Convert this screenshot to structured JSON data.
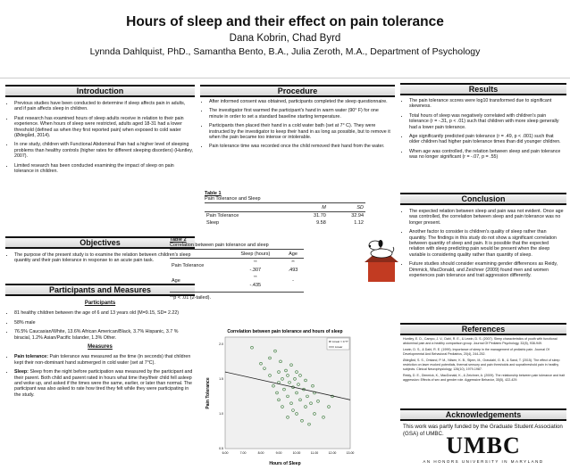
{
  "header": {
    "title": "Hours of sleep and their effect on pain tolerance",
    "authors": "Dana Kobrin, Chad Byrd",
    "affiliation": "Lynnda Dahlquist, PhD., Samantha Bento, B.A., Julia Zeroth, M.A., Department of Psychology"
  },
  "introduction": {
    "heading": "Introduction",
    "bullets": [
      "Previous studies have been conducted to determine if sleep affects pain in adults, and if pain affects sleep in children.",
      "Past research has examined hours of sleep adults receive in relation to their pain experience. When hours of sleep were restricted, adults aged 18-31 had a lower threshold (defined as when they first reported pain) when exposed to cold water (Ødegård, 2014).",
      "In one study, children with Functional Abdominal Pain had a higher level of sleeping problems than healthy controls (higher rates for different sleeping disorders) (Huntley, 2007).",
      "Limited research has been conducted examining the impact of sleep on pain tolerance in children."
    ]
  },
  "objectives": {
    "heading": "Objectives",
    "bullets": [
      "The purpose of the present study is to examine the relation between children's sleep quantity and their pain tolerance in response to an acute pain task."
    ]
  },
  "participants": {
    "heading": "Participants and Measures",
    "participants_sub": "Participants",
    "bullets": [
      "81 healthy children between the age of 6 and 13 years old (M=9.15, SD= 2.22)",
      "58% male",
      "76.5% Caucasian/White, 13.6% African American/Black, 3.7% Hispanic, 3.7 % biracial, 1.2% Asian/Pacific Islander, 1.3% Other."
    ],
    "measures_sub": "Measures",
    "measures": [
      {
        "label": "Pain tolerance:",
        "text": " Pain tolerance was measured as the time (in seconds) that children kept their non-dominant hand submerged in cold water (set at 7°C)."
      },
      {
        "label": "Sleep:",
        "text": " Sleep from the night before participation was measured by the participant and their parent. Both child and parent rated in hours what time they/their child fell asleep and woke up, and asked if the times were the same, earlier, or later than normal. The participant was also asked to rate how tired they felt while they were participating in the study."
      }
    ]
  },
  "procedure": {
    "heading": "Procedure",
    "bullets": [
      "After informed consent was obtained, participants completed the sleep questionnaire.",
      "The investigator first warmed the participant's hand in warm water (90° F) for one minute in order to set a standard baseline starting temperature.",
      "Participants then placed their hand in a cold water bath (set at 7° C). They were instructed by the investigator to keep their hand in as long as possible, but to remove it when the pain became too intense or intolerable.",
      "Pain tolerance time was recorded once the child removed their hand from the water."
    ]
  },
  "table1": {
    "caption": "Table 1",
    "subtitle": "Pain Tolerance and Sleep",
    "col_m": "M",
    "col_sd": "SD",
    "rows": [
      {
        "label": "Pain Tolerance",
        "m": "31.70",
        "sd": "32.94"
      },
      {
        "label": "Sleep",
        "m": "9.58",
        "sd": "1.12"
      }
    ]
  },
  "table2": {
    "caption": "Table 2",
    "subtitle": "Correlation between pain tolerance and sleep",
    "col1": "Sleep (hours)",
    "col2": "Age",
    "row1_label": "Pain Tolerance",
    "row1_v1": "-.307",
    "row1_v2": ".493",
    "row2_label": "Age",
    "row2_v1": "-.435",
    "row2_v2": "-",
    "sig_mark": "**",
    "note": "**p < .01 (2-tailed)."
  },
  "results": {
    "heading": "Results",
    "bullets": [
      "The pain tolerance scores were log10 transformed due to significant skewness.",
      "Total hours of sleep was negatively correlated with children's pain tolerance (r = -.31, p < .01) such that children with more sleep generally had a lower pain tolerance.",
      "Age significantly predicted pain tolerance (r = .49, p < .001) such that older children had higher pain tolerance times than did younger children.",
      "When age was controlled, the relation between sleep and pain tolerance was no longer significant (r = -.07, p = .55)"
    ]
  },
  "conclusion": {
    "heading": "Conclusion",
    "bullets": [
      "The expected relation between sleep and pain was not evident. Once age was controlled, the correlation between sleep and pain tolerance was no longer present.",
      "Another factor to consider is children's quality of sleep rather than quantity. The findings in this study do not show a significant correlation between quantity of sleep and pain. It is possible that the expected relation with sleep predicting pain would be present when the sleep variable is considering quality rather than quantity of sleep.",
      "Future studies should consider examining gender differences as Reidy, Dimmick, MacDonald, and Zeichner (2009) found men and women experiences pain tolerance and trait aggression differently."
    ]
  },
  "references": {
    "heading": "References",
    "items": [
      "Huntley, E. D., Campo, J. V., Dahl, R. E., & Lewin, D. S. (2007). Sleep characteristics of youth with functional abdominal pain and a healthy comparison group. Journal Of Pediatric Psychology, 32(8), 938-949.",
      "Lewin, D. S., & Dahl, R. E. (1999). Importance of sleep in the management of pediatric pain. Journal Of Developmental And Behavioral Pediatrics, 20(4), 244-252.",
      "Ødegård, S. S., Omland, P. M., Nilsen, K. B., Stjern, M., Gravdahl, G. B., & Sand, T. (2015). The effect of sleep restriction on laser evoked potentials, thermal sensory and pain thresholds and suprathreshold pain in healthy subjects. Clinical Neurophysiology, 126(10), 1979-1987.",
      "Reidy, D. E., Dimmick, K., MacDonald, K., & Zeichner, A. (2009). The relationship between pain tolerance and trait aggression: Effects of sex and gender role. Aggressive Behavior, 35(5), 422-429."
    ]
  },
  "acknowledgements": {
    "heading": "Acknowledgements",
    "text": "This work was partly funded by the Graduate Student Association (GSA) of UMBC."
  },
  "logo": {
    "name": "UMBC",
    "tagline": "AN HONORS UNIVERSITY IN MARYLAND"
  },
  "chart_data": {
    "type": "scatter",
    "title": "Correlation between pain tolerance and hours of sleep",
    "xlabel": "Hours of Sleep",
    "ylabel": "Pain Tolerance",
    "xlim": [
      6.0,
      13.0
    ],
    "ylim": [
      0.5,
      2.1
    ],
    "xticks": [
      "6.00",
      "7.00",
      "8.00",
      "9.00",
      "10.00",
      "11.00",
      "12.00",
      "13.00"
    ],
    "yticks": [
      "0.5",
      "1.0",
      "1.5",
      "2.0"
    ],
    "yticks_values": [
      0.5,
      1.0,
      1.5,
      2.0
    ],
    "legend": "top-right",
    "legend_entries": [
      "R² Linear = 0.??",
      "Linear"
    ],
    "fit_line": [
      [
        6.0,
        1.6
      ],
      [
        13.0,
        1.2
      ]
    ],
    "points": [
      [
        7.5,
        1.95
      ],
      [
        8.0,
        1.72
      ],
      [
        8.2,
        1.65
      ],
      [
        8.5,
        1.8
      ],
      [
        8.5,
        1.55
      ],
      [
        8.7,
        1.4
      ],
      [
        8.8,
        1.9
      ],
      [
        8.9,
        1.3
      ],
      [
        9.0,
        1.6
      ],
      [
        9.0,
        1.45
      ],
      [
        9.0,
        1.2
      ],
      [
        9.1,
        1.75
      ],
      [
        9.2,
        1.5
      ],
      [
        9.2,
        1.1
      ],
      [
        9.3,
        1.35
      ],
      [
        9.4,
        1.62
      ],
      [
        9.5,
        1.25
      ],
      [
        9.5,
        1.55
      ],
      [
        9.5,
        0.95
      ],
      [
        9.6,
        1.45
      ],
      [
        9.7,
        1.7
      ],
      [
        9.7,
        1.15
      ],
      [
        9.8,
        1.38
      ],
      [
        9.8,
        1.05
      ],
      [
        9.9,
        1.5
      ],
      [
        10.0,
        1.3
      ],
      [
        10.0,
        1.6
      ],
      [
        10.0,
        1.0
      ],
      [
        10.1,
        1.42
      ],
      [
        10.2,
        1.2
      ],
      [
        10.2,
        1.55
      ],
      [
        10.3,
        0.9
      ],
      [
        10.4,
        1.35
      ],
      [
        10.5,
        1.1
      ],
      [
        10.5,
        1.48
      ],
      [
        10.6,
        1.25
      ],
      [
        10.7,
        0.85
      ],
      [
        10.8,
        1.15
      ],
      [
        10.9,
        1.4
      ],
      [
        11.0,
        1.0
      ],
      [
        11.0,
        1.3
      ],
      [
        11.2,
        1.18
      ],
      [
        11.5,
        0.95
      ],
      [
        11.8,
        1.1
      ],
      [
        12.0,
        1.25
      ]
    ]
  }
}
